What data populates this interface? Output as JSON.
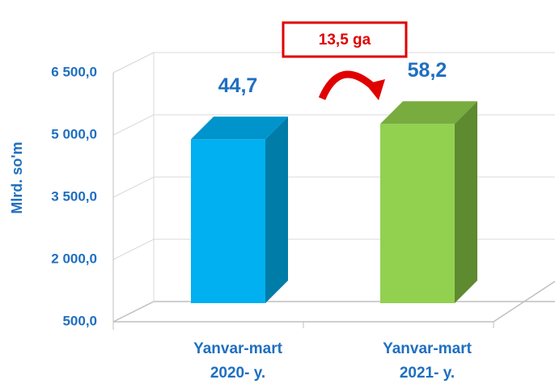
{
  "chart_data": {
    "type": "bar3d",
    "y_axis_label": "Mlrd. so'm",
    "categories": [
      "Yanvar-mart\n2020- y.",
      "Yanvar-mart\n2021- y."
    ],
    "values": [
      4450,
      4820
    ],
    "bar_labels": [
      "44,7",
      "58,2"
    ],
    "colors": [
      "#00b0f0",
      "#92d050"
    ],
    "ylim": [
      500,
      6500
    ],
    "yticks": [
      {
        "value": 500,
        "label": "500,0"
      },
      {
        "value": 2000,
        "label": "2 000,0"
      },
      {
        "value": 3500,
        "label": "3 500,0"
      },
      {
        "value": 5000,
        "label": "5 000,0"
      },
      {
        "value": 6500,
        "label": "6 500,0"
      }
    ],
    "grid": true,
    "annotation": "13,5 ga"
  }
}
